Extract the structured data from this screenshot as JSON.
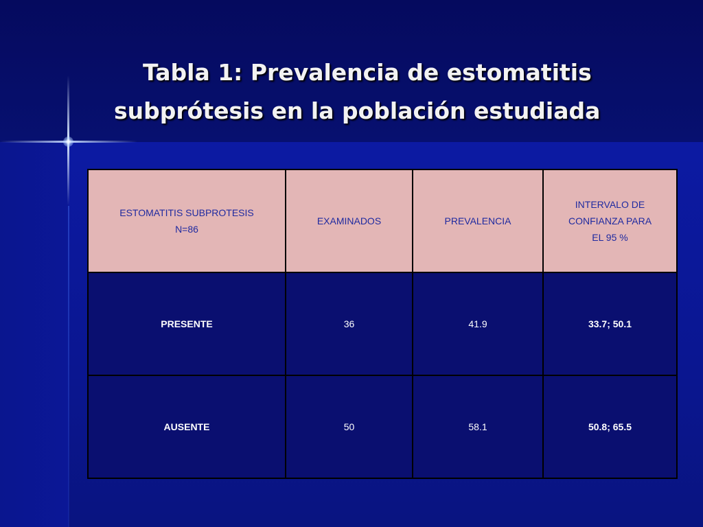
{
  "slide": {
    "title_line1": "Tabla 1: Prevalencia de estomatitis",
    "title_line2": "subprótesis en la población estudiada"
  },
  "table": {
    "headers": [
      {
        "line1": "ESTOMATITIS SUBPROTESIS",
        "line2": "N=86"
      },
      {
        "line1": "EXAMINADOS"
      },
      {
        "line1": "PREVALENCIA"
      },
      {
        "line1": "INTERVALO DE",
        "line2": "CONFIANZA PARA",
        "line3": "EL 95 %"
      }
    ],
    "rows": [
      {
        "label": "PRESENTE",
        "examinados": "36",
        "prevalencia": "41.9",
        "intervalo": "33.7; 50.1"
      },
      {
        "label": "AUSENTE",
        "examinados": "50",
        "prevalencia": "58.1",
        "intervalo": "50.8; 65.5"
      }
    ]
  },
  "colors": {
    "header_bg": "#e3b6b6",
    "header_text": "#1f2aa0",
    "cell_bg": "#0a0f70",
    "cell_text": "#ffffff",
    "slide_bg": "#0a168f"
  }
}
